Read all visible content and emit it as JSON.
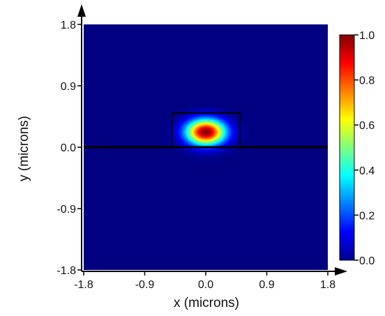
{
  "chart_data": {
    "type": "heatmap",
    "title": "",
    "xlabel": "x (microns)",
    "ylabel": "y (microns)",
    "xlim": [
      -1.8,
      1.8
    ],
    "ylim": [
      -1.8,
      1.8
    ],
    "x_ticks": [
      "-1.8",
      "-0.9",
      "0.0",
      "0.9",
      "1.8"
    ],
    "y_ticks": [
      "1.8",
      "0.9",
      "0.0",
      "-0.9",
      "-1.8"
    ],
    "colorbar": {
      "range": [
        0.0,
        1.0
      ],
      "ticks": [
        "1.0",
        "0.8",
        "0.6",
        "0.4",
        "0.2",
        "0.0"
      ],
      "colormap": "jet"
    },
    "field": {
      "peak_value": 1.0,
      "center_x": 0.0,
      "center_y": 0.22,
      "width_x": 0.2,
      "width_y": 0.13
    },
    "structure": {
      "waveguide": {
        "x_min": -0.5,
        "x_max": 0.5,
        "y_min": 0.0,
        "y_max": 0.5
      },
      "substrate_boundary_y": 0.0
    },
    "colors": {
      "low": "#00008f",
      "high": "#800000",
      "outline": "#000000"
    }
  }
}
